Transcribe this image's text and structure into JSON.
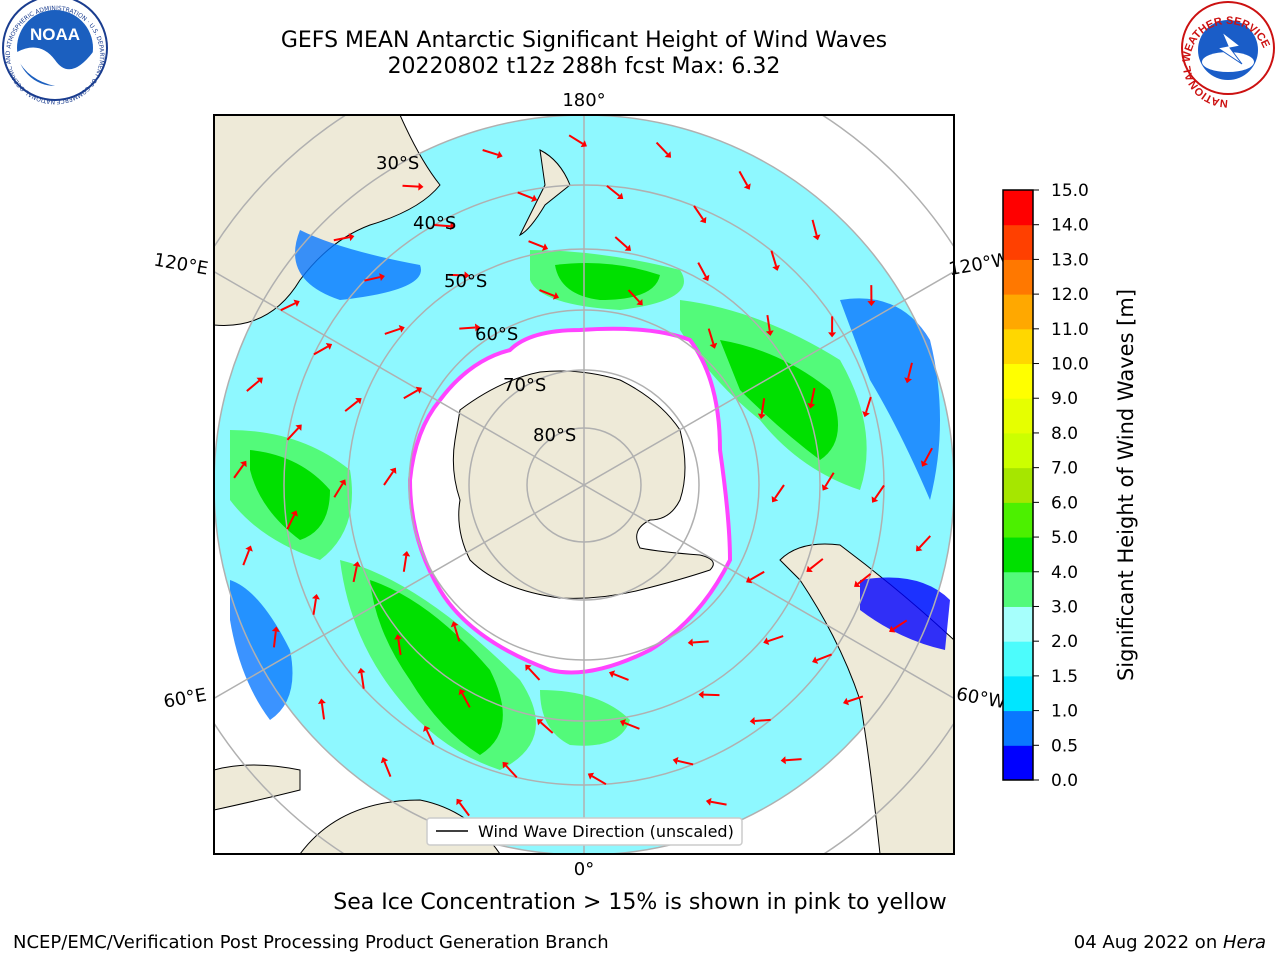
{
  "title": {
    "line1": "GEFS MEAN Antarctic Significant Height of Wind Waves",
    "line2": "20220802 t12z 288h fcst   Max: 6.32"
  },
  "logos": {
    "noaa": {
      "text": "NOAA",
      "ring_text": "NATIONAL OCEANIC AND ATMOSPHERIC ADMINISTRATION · U.S. DEPARTMENT OF COMMERCE"
    },
    "nws": {
      "ring_text": "NATIONAL WEATHER SERVICE"
    }
  },
  "map": {
    "projection": "south polar stereographic",
    "longitude_labels": {
      "top": "180°",
      "bottom": "0°",
      "left_upper": "120°E",
      "left_lower": "60°E",
      "right_upper": "120°W",
      "right_lower": "60°W"
    },
    "latitude_labels": [
      "30°S",
      "40°S",
      "50°S",
      "60°S",
      "70°S",
      "80°S"
    ],
    "legend_label": "Wind Wave Direction (unscaled)",
    "colors": {
      "land": "#eeead8",
      "ice_edge": "#ff44ff",
      "arrows": "#ff0000",
      "graticule": "#b0b0b0"
    }
  },
  "colorbar": {
    "label": "Significant Height of Wind Waves [m]",
    "ticks": [
      "0.0",
      "0.5",
      "1.0",
      "1.5",
      "2.0",
      "3.0",
      "4.0",
      "5.0",
      "6.0",
      "7.0",
      "8.0",
      "9.0",
      "10.0",
      "11.0",
      "12.0",
      "13.0",
      "14.0",
      "15.0"
    ],
    "colors": [
      "#0000ff",
      "#0a78ff",
      "#00e6ff",
      "#4cfcfc",
      "#a6fffc",
      "#53fa7a",
      "#00e000",
      "#4cf000",
      "#a6e600",
      "#ccff00",
      "#e6ff00",
      "#ffff00",
      "#ffd700",
      "#ffa800",
      "#ff7800",
      "#ff4000",
      "#ff0000"
    ]
  },
  "caption": "Sea Ice Concentration > 15% is shown in pink to yellow",
  "footer": {
    "left": "NCEP/EMC/Verification Post Processing Product Generation Branch",
    "right_prefix": "04 Aug 2022 on ",
    "right_em": "Hera"
  }
}
